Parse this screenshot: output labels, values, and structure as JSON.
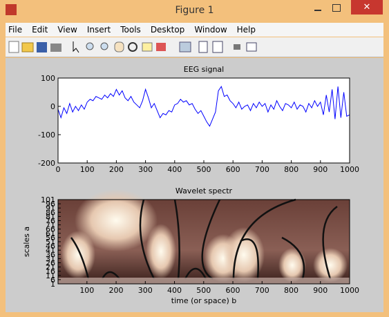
{
  "window": {
    "title": "Figure 1"
  },
  "menu": [
    "File",
    "Edit",
    "View",
    "Insert",
    "Tools",
    "Desktop",
    "Window",
    "Help"
  ],
  "chart_data": [
    {
      "type": "line",
      "title": "EEG signal",
      "x": [
        0,
        10,
        20,
        30,
        40,
        50,
        60,
        70,
        80,
        90,
        100,
        110,
        120,
        130,
        140,
        150,
        160,
        170,
        180,
        190,
        200,
        210,
        220,
        230,
        240,
        250,
        260,
        270,
        280,
        290,
        300,
        310,
        320,
        330,
        340,
        350,
        360,
        370,
        380,
        390,
        400,
        410,
        420,
        430,
        440,
        450,
        460,
        470,
        480,
        490,
        500,
        510,
        520,
        530,
        540,
        550,
        560,
        570,
        580,
        590,
        600,
        610,
        620,
        630,
        640,
        650,
        660,
        670,
        680,
        690,
        700,
        710,
        720,
        730,
        740,
        750,
        760,
        770,
        780,
        790,
        800,
        810,
        820,
        830,
        840,
        850,
        860,
        870,
        880,
        890,
        900,
        910,
        920,
        930,
        940,
        950,
        960,
        970,
        980,
        990,
        1000
      ],
      "series": [
        {
          "color": "#0000ff",
          "values": [
            -10,
            -40,
            -5,
            -25,
            10,
            -20,
            0,
            -15,
            5,
            -10,
            15,
            25,
            20,
            35,
            30,
            25,
            40,
            30,
            45,
            35,
            60,
            40,
            55,
            30,
            20,
            35,
            15,
            5,
            -5,
            20,
            60,
            30,
            -5,
            10,
            -15,
            -40,
            -25,
            -30,
            -15,
            -20,
            5,
            10,
            25,
            15,
            20,
            5,
            10,
            -10,
            -25,
            -15,
            -35,
            -55,
            -70,
            -45,
            -20,
            55,
            70,
            35,
            40,
            20,
            10,
            -5,
            15,
            -10,
            0,
            5,
            -15,
            10,
            -5,
            15,
            0,
            10,
            -20,
            5,
            -10,
            20,
            0,
            -15,
            10,
            5,
            -5,
            15,
            -10,
            5,
            0,
            -20,
            10,
            -5,
            20,
            0,
            15,
            -30,
            40,
            -20,
            60,
            -45,
            70,
            -40,
            50,
            -35,
            -30
          ]
        }
      ],
      "xlim": [
        0,
        1000
      ],
      "ylim": [
        -200,
        100
      ],
      "xticks": [
        0,
        100,
        200,
        300,
        400,
        500,
        600,
        700,
        800,
        900,
        1000
      ],
      "yticks": [
        -200,
        -100,
        0,
        100
      ]
    },
    {
      "type": "heatmap",
      "title": "Wavelet spectr",
      "xlabel": "time (or space) b",
      "ylabel": "scales a",
      "xlim": [
        1,
        1000
      ],
      "ylim": [
        1,
        101
      ],
      "xticks": [
        100,
        200,
        300,
        400,
        500,
        600,
        700,
        800,
        900,
        1000
      ],
      "yticks": [
        1,
        6,
        11,
        16,
        21,
        26,
        31,
        36,
        41,
        46,
        51,
        56,
        61,
        66,
        71,
        76,
        81,
        86,
        91,
        96,
        101
      ]
    }
  ]
}
